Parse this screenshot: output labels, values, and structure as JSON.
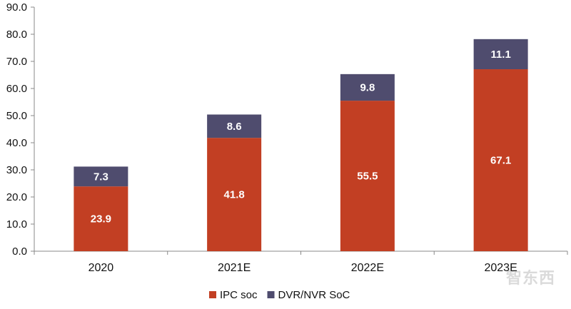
{
  "chart_data": {
    "type": "bar",
    "stacked": true,
    "categories": [
      "2020",
      "2021E",
      "2022E",
      "2023E"
    ],
    "series": [
      {
        "name": "IPC soc",
        "values": [
          23.9,
          41.8,
          55.5,
          67.1
        ],
        "labels": [
          "23.9",
          "41.8",
          "55.5",
          "67.1"
        ],
        "color": "#c23f23"
      },
      {
        "name": "DVR/NVR SoC",
        "values": [
          7.3,
          8.6,
          9.8,
          11.1
        ],
        "labels": [
          "7.3",
          "8.6",
          "9.8",
          "11.1"
        ],
        "color": "#4f4c6e"
      }
    ],
    "ylim": [
      0,
      90
    ],
    "yticks": [
      "0.0",
      "10.0",
      "20.0",
      "30.0",
      "40.0",
      "50.0",
      "60.0",
      "70.0",
      "80.0",
      "90.0"
    ],
    "legend_position": "bottom",
    "grid": false,
    "watermark": "智东西"
  }
}
